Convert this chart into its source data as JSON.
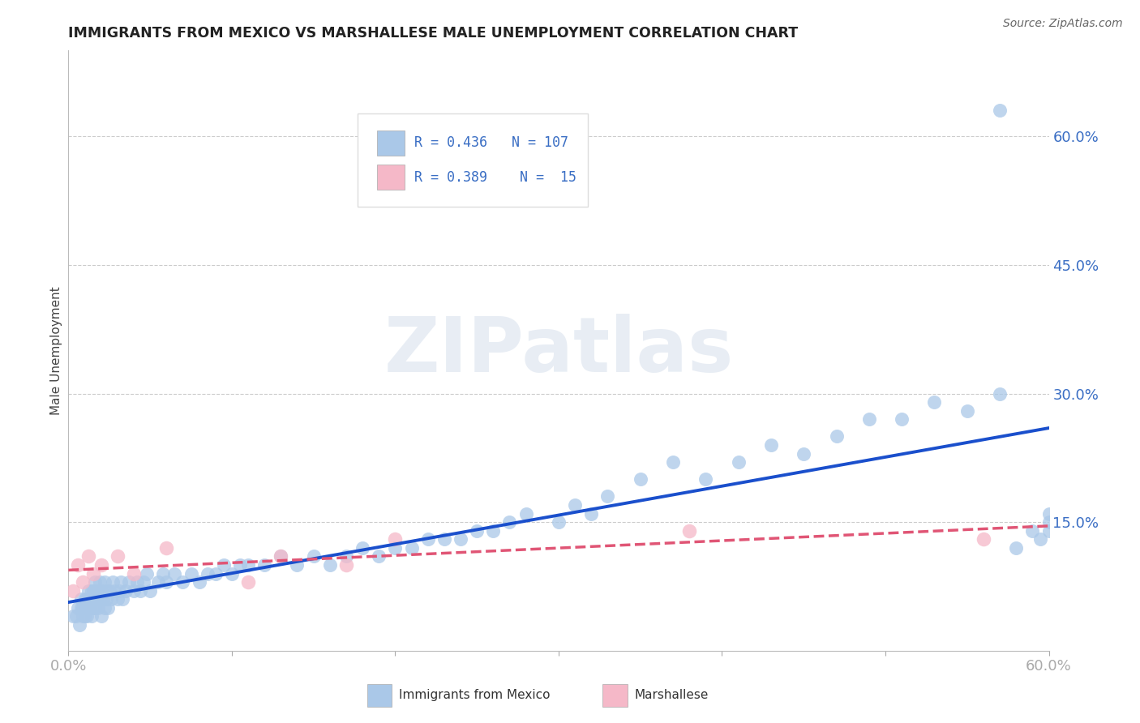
{
  "title": "IMMIGRANTS FROM MEXICO VS MARSHALLESE MALE UNEMPLOYMENT CORRELATION CHART",
  "source": "Source: ZipAtlas.com",
  "ylabel": "Male Unemployment",
  "xlim": [
    0.0,
    0.6
  ],
  "ylim": [
    0.0,
    0.7
  ],
  "xticks": [
    0.0,
    0.1,
    0.2,
    0.3,
    0.4,
    0.5,
    0.6
  ],
  "xticklabels": [
    "0.0%",
    "",
    "",
    "",
    "",
    "",
    "60.0%"
  ],
  "ytick_right_positions": [
    0.15,
    0.3,
    0.45,
    0.6
  ],
  "ytick_right_labels": [
    "15.0%",
    "30.0%",
    "45.0%",
    "60.0%"
  ],
  "grid_color": "#cccccc",
  "background_color": "#ffffff",
  "legend_R1": "0.436",
  "legend_N1": "107",
  "legend_R2": "0.389",
  "legend_N2": "15",
  "blue_color": "#aac8e8",
  "blue_edge_color": "#aac8e8",
  "blue_line_color": "#1a4fcc",
  "pink_color": "#f5b8c8",
  "pink_edge_color": "#f5b8c8",
  "pink_line_color": "#e05575",
  "watermark_text": "ZIPatlas",
  "mexico_x": [
    0.003,
    0.005,
    0.006,
    0.007,
    0.008,
    0.008,
    0.009,
    0.009,
    0.01,
    0.01,
    0.01,
    0.011,
    0.011,
    0.012,
    0.012,
    0.013,
    0.013,
    0.014,
    0.014,
    0.015,
    0.015,
    0.015,
    0.016,
    0.016,
    0.017,
    0.017,
    0.018,
    0.018,
    0.019,
    0.019,
    0.02,
    0.02,
    0.021,
    0.022,
    0.022,
    0.023,
    0.023,
    0.024,
    0.025,
    0.026,
    0.027,
    0.028,
    0.03,
    0.031,
    0.032,
    0.033,
    0.035,
    0.037,
    0.04,
    0.042,
    0.044,
    0.046,
    0.048,
    0.05,
    0.055,
    0.058,
    0.06,
    0.065,
    0.07,
    0.075,
    0.08,
    0.085,
    0.09,
    0.095,
    0.1,
    0.105,
    0.11,
    0.12,
    0.13,
    0.14,
    0.15,
    0.16,
    0.17,
    0.18,
    0.19,
    0.2,
    0.21,
    0.22,
    0.23,
    0.24,
    0.25,
    0.26,
    0.27,
    0.28,
    0.3,
    0.31,
    0.32,
    0.33,
    0.35,
    0.37,
    0.39,
    0.41,
    0.43,
    0.45,
    0.47,
    0.49,
    0.51,
    0.53,
    0.55,
    0.57,
    0.58,
    0.59,
    0.595,
    0.6,
    0.6,
    0.6,
    0.57
  ],
  "mexico_y": [
    0.04,
    0.04,
    0.05,
    0.03,
    0.05,
    0.06,
    0.04,
    0.05,
    0.04,
    0.05,
    0.06,
    0.04,
    0.06,
    0.05,
    0.07,
    0.05,
    0.06,
    0.04,
    0.07,
    0.05,
    0.06,
    0.07,
    0.05,
    0.08,
    0.06,
    0.07,
    0.05,
    0.07,
    0.06,
    0.08,
    0.04,
    0.07,
    0.06,
    0.05,
    0.08,
    0.06,
    0.07,
    0.05,
    0.07,
    0.06,
    0.08,
    0.07,
    0.06,
    0.07,
    0.08,
    0.06,
    0.07,
    0.08,
    0.07,
    0.08,
    0.07,
    0.08,
    0.09,
    0.07,
    0.08,
    0.09,
    0.08,
    0.09,
    0.08,
    0.09,
    0.08,
    0.09,
    0.09,
    0.1,
    0.09,
    0.1,
    0.1,
    0.1,
    0.11,
    0.1,
    0.11,
    0.1,
    0.11,
    0.12,
    0.11,
    0.12,
    0.12,
    0.13,
    0.13,
    0.13,
    0.14,
    0.14,
    0.15,
    0.16,
    0.15,
    0.17,
    0.16,
    0.18,
    0.2,
    0.22,
    0.2,
    0.22,
    0.24,
    0.23,
    0.25,
    0.27,
    0.27,
    0.29,
    0.28,
    0.3,
    0.12,
    0.14,
    0.13,
    0.14,
    0.15,
    0.16,
    0.63
  ],
  "marsh_x": [
    0.003,
    0.006,
    0.009,
    0.012,
    0.015,
    0.02,
    0.03,
    0.04,
    0.06,
    0.11,
    0.13,
    0.17,
    0.2,
    0.38,
    0.56
  ],
  "marsh_y": [
    0.07,
    0.1,
    0.08,
    0.11,
    0.09,
    0.1,
    0.11,
    0.09,
    0.12,
    0.08,
    0.11,
    0.1,
    0.13,
    0.14,
    0.13
  ]
}
